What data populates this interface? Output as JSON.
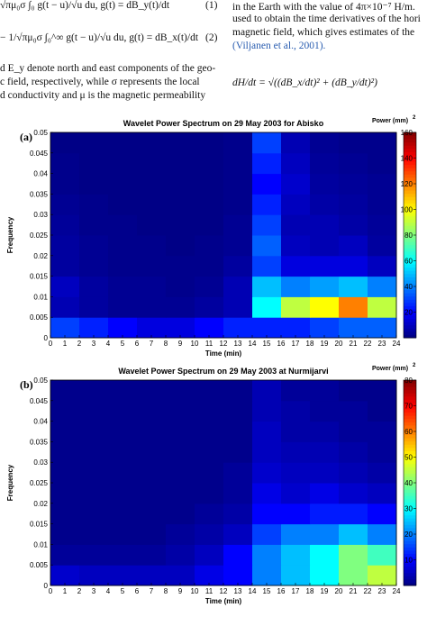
{
  "text": {
    "eq1": "√πμ₀σ ∫₀  g(t − u)/√u du,    g(t) = dB_y(t)/dt",
    "eq1_num": "(1)",
    "eq2": "− 1/√πμ₀σ ∫₀^∞ g(t − u)/√u du,    g(t) = dB_x(t)/dt",
    "eq2_num": "(2)",
    "left": [
      "d E_y denote north and east components of the geo-",
      "c field, respectively, while σ represents the local",
      "d conductivity and μ is the magnetic permeability"
    ],
    "right": [
      "in the Earth with the value of 4π×10⁻⁷ H/m.",
      "used to obtain the time derivatives of the hori",
      "magnetic field, which gives estimates of the",
      "(Viljanen et al., 2001)."
    ],
    "eq3": "dH/dt = √((dB_x/dt)² + (dB_y/dt)²)"
  },
  "chart_data": [
    {
      "type": "heatmap",
      "panel": "(a)",
      "title": "Wavelet Power Spectrum on 29 May 2003 for Abisko",
      "xlabel": "Time (min)",
      "ylabel": "Frequency",
      "colorbar_label": "Power (mm)",
      "colorbar_label_sup": "2",
      "colormap": "jet",
      "xlim": [
        0,
        24
      ],
      "xticks": [
        0,
        1,
        2,
        3,
        4,
        5,
        6,
        7,
        8,
        9,
        10,
        11,
        12,
        13,
        14,
        15,
        16,
        17,
        18,
        19,
        20,
        21,
        22,
        23,
        24
      ],
      "ylim": [
        0,
        0.05
      ],
      "yticks": [
        0,
        0.005,
        0.01,
        0.015,
        0.02,
        0.025,
        0.03,
        0.035,
        0.04,
        0.045,
        0.05
      ],
      "clim": [
        0,
        160
      ],
      "cticks": [
        20,
        40,
        60,
        80,
        100,
        120,
        140,
        160
      ],
      "z": [
        [
          30,
          25,
          20,
          15,
          15,
          20,
          25,
          25,
          25,
          30,
          35,
          35
        ],
        [
          8,
          5,
          3,
          3,
          3,
          5,
          8,
          60,
          90,
          100,
          120,
          90
        ],
        [
          10,
          5,
          3,
          3,
          2,
          3,
          8,
          50,
          40,
          45,
          50,
          40
        ],
        [
          5,
          3,
          2,
          2,
          2,
          2,
          5,
          30,
          15,
          15,
          15,
          10
        ],
        [
          5,
          3,
          2,
          2,
          1,
          2,
          3,
          35,
          10,
          8,
          10,
          5
        ],
        [
          4,
          2,
          2,
          1,
          1,
          1,
          3,
          30,
          8,
          8,
          6,
          4
        ],
        [
          3,
          2,
          1,
          1,
          1,
          1,
          2,
          25,
          10,
          6,
          5,
          3
        ],
        [
          2,
          1,
          1,
          1,
          1,
          1,
          2,
          20,
          12,
          5,
          4,
          3
        ],
        [
          2,
          1,
          1,
          1,
          1,
          1,
          2,
          25,
          10,
          4,
          3,
          2
        ],
        [
          1,
          1,
          1,
          1,
          1,
          1,
          2,
          30,
          8,
          3,
          2,
          2
        ]
      ]
    },
    {
      "type": "heatmap",
      "panel": "(b)",
      "title": "Wavelet Power Spectrum on 29 May 2003 at Nurmijarvi",
      "xlabel": "Time (min)",
      "ylabel": "Frequency",
      "colorbar_label": "Power (mm)",
      "colorbar_label_sup": "2",
      "colormap": "jet",
      "xlim": [
        0,
        24
      ],
      "xticks": [
        0,
        1,
        2,
        3,
        4,
        5,
        6,
        7,
        8,
        9,
        10,
        11,
        12,
        13,
        14,
        15,
        16,
        17,
        18,
        19,
        20,
        21,
        22,
        23,
        24
      ],
      "ylim": [
        0,
        0.05
      ],
      "yticks": [
        0,
        0.005,
        0.01,
        0.015,
        0.02,
        0.025,
        0.03,
        0.035,
        0.04,
        0.045,
        0.05
      ],
      "clim": [
        0,
        80
      ],
      "cticks": [
        10,
        20,
        30,
        40,
        50,
        60,
        70,
        80
      ],
      "z": [
        [
          6,
          5,
          5,
          5,
          5,
          8,
          10,
          20,
          25,
          30,
          40,
          45
        ],
        [
          2,
          2,
          2,
          2,
          3,
          5,
          10,
          20,
          25,
          30,
          40,
          35
        ],
        [
          1,
          1,
          1,
          1,
          2,
          3,
          5,
          15,
          20,
          20,
          25,
          20
        ],
        [
          1,
          1,
          1,
          1,
          1,
          2,
          3,
          10,
          10,
          12,
          12,
          10
        ],
        [
          1,
          1,
          1,
          1,
          1,
          1,
          2,
          8,
          6,
          8,
          6,
          5
        ],
        [
          1,
          1,
          1,
          1,
          1,
          1,
          2,
          6,
          5,
          5,
          4,
          3
        ],
        [
          1,
          1,
          1,
          1,
          1,
          1,
          1,
          5,
          4,
          4,
          3,
          2
        ],
        [
          1,
          1,
          1,
          1,
          1,
          1,
          1,
          5,
          3,
          3,
          2,
          2
        ],
        [
          1,
          1,
          1,
          1,
          1,
          1,
          1,
          4,
          3,
          2,
          2,
          1
        ],
        [
          1,
          1,
          1,
          1,
          1,
          1,
          1,
          4,
          2,
          2,
          1,
          1
        ]
      ]
    }
  ]
}
